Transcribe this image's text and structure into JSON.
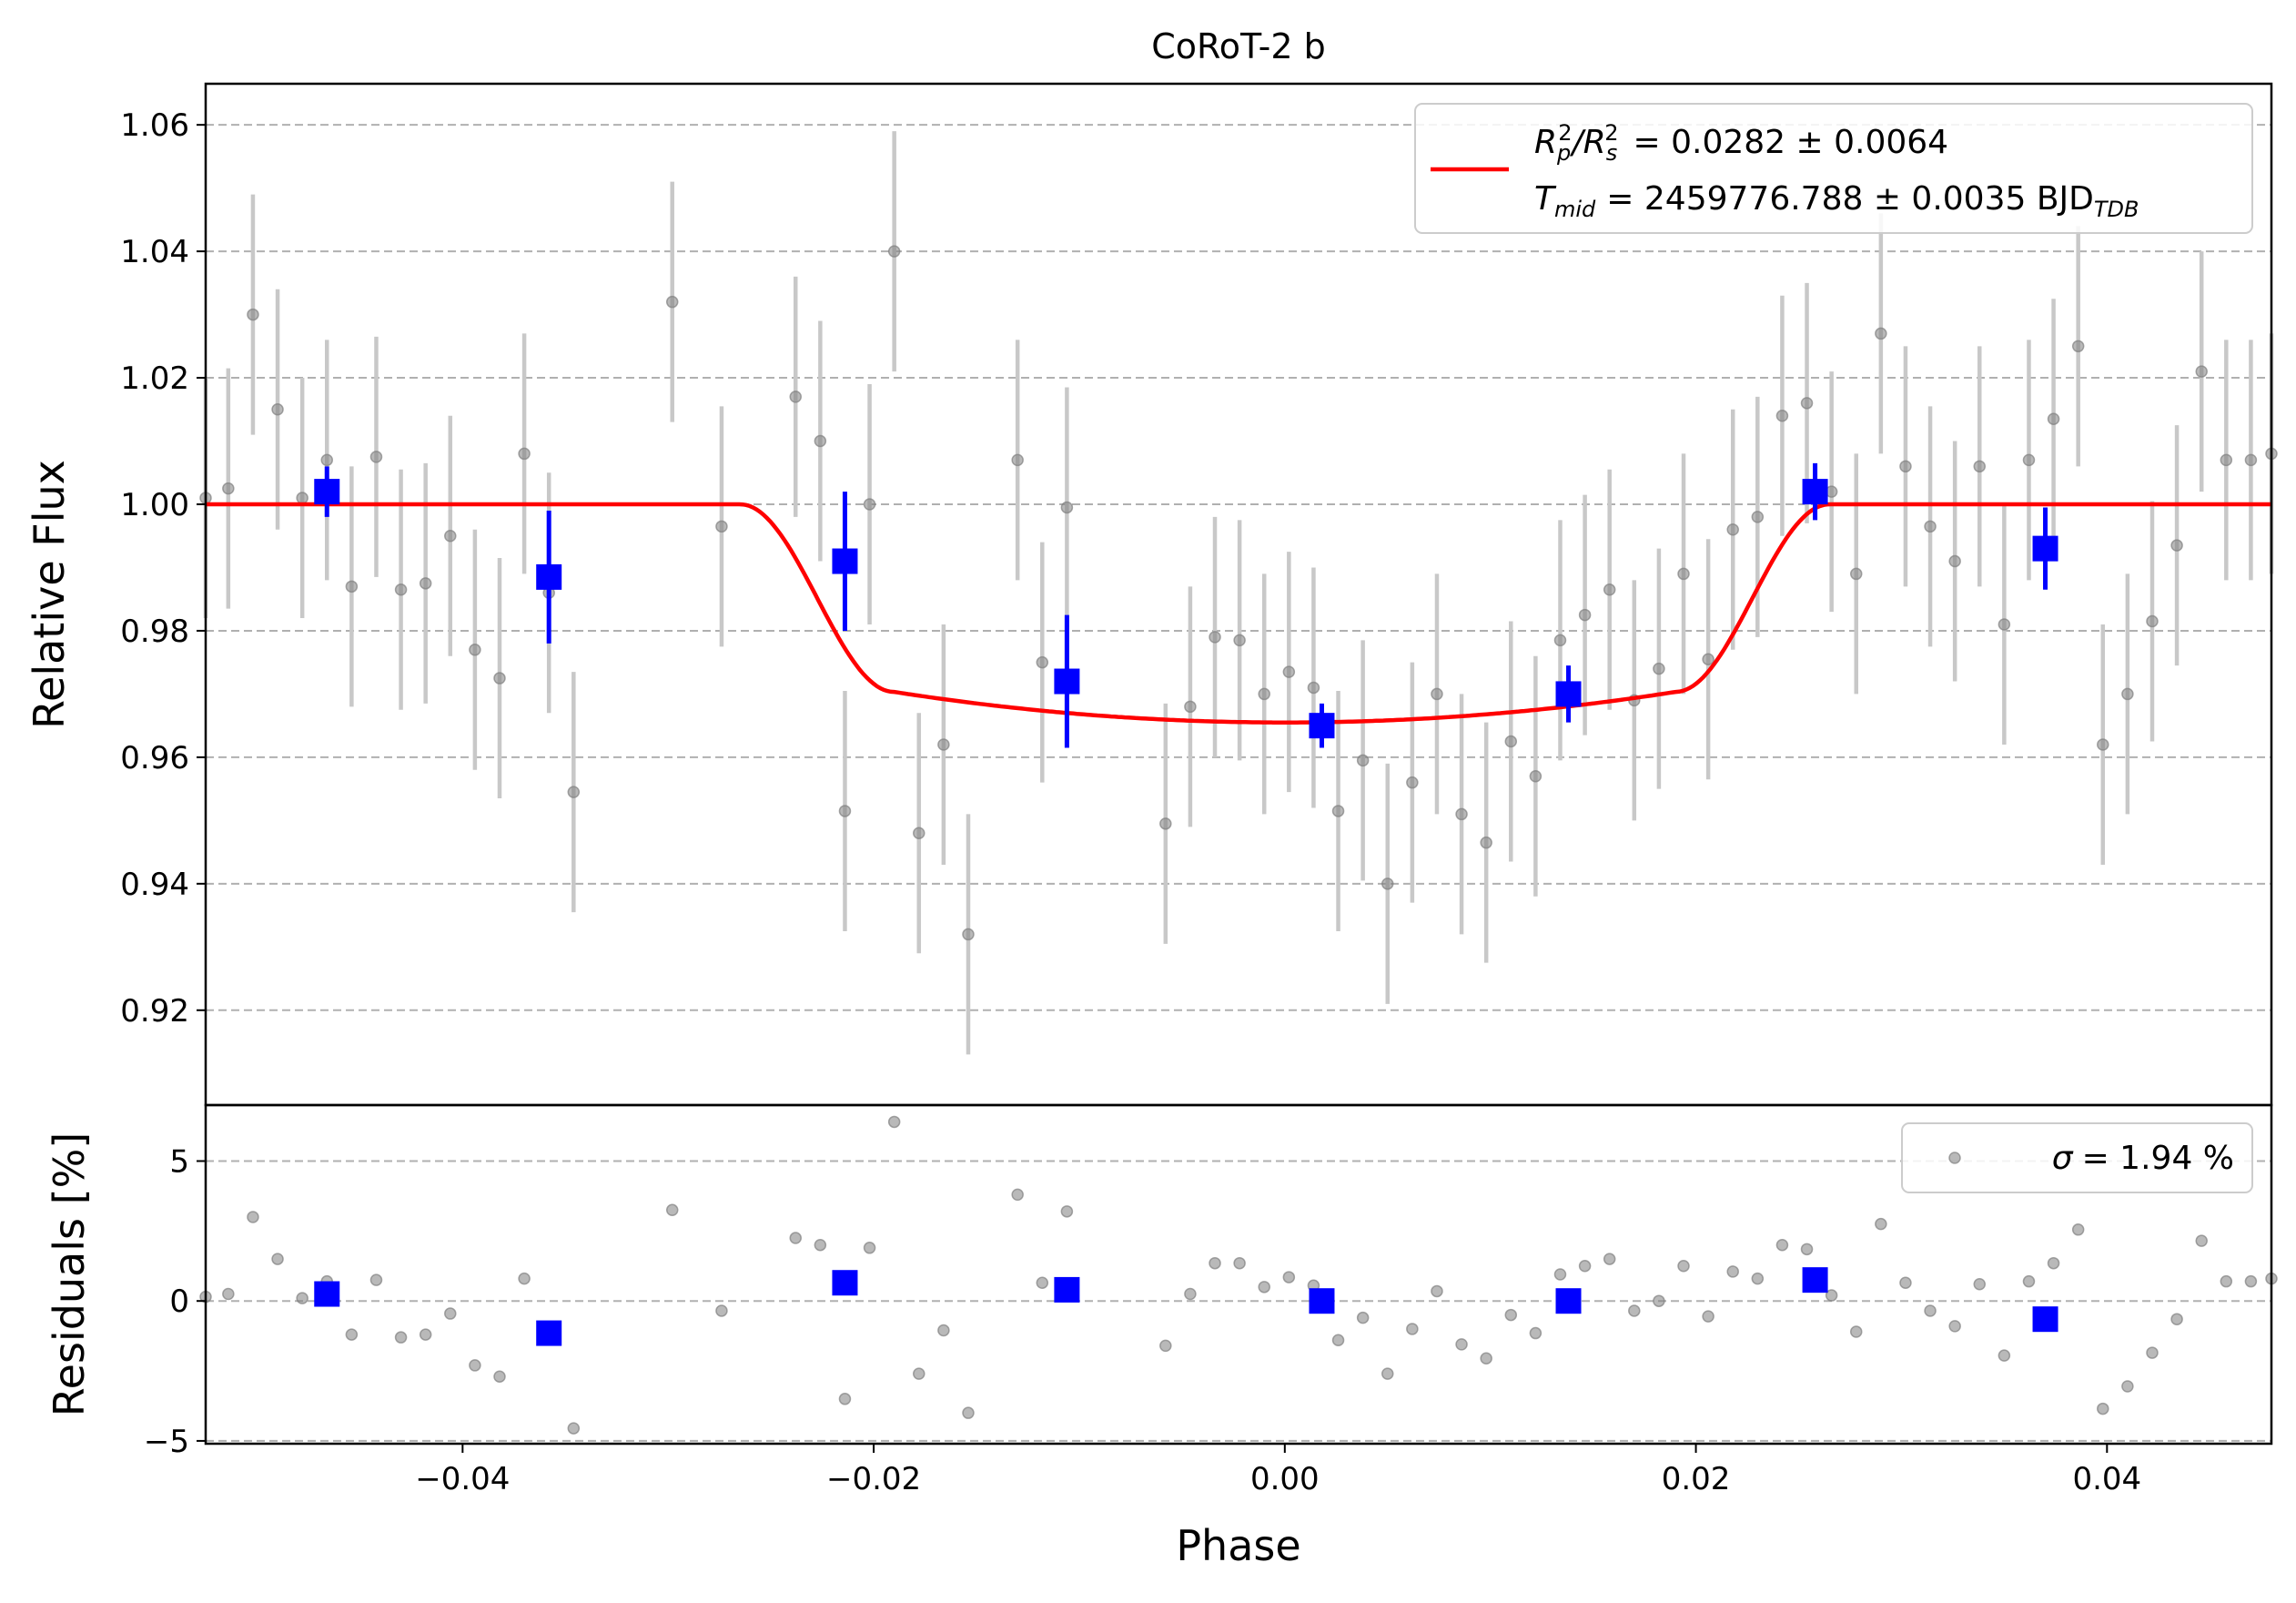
{
  "chart_data": [
    {
      "type": "scatter",
      "title": "CoRoT-2 b",
      "xlabel": "",
      "ylabel": "Relative Flux",
      "xlim": [
        -0.0525,
        0.048
      ],
      "ylim": [
        0.905,
        1.0665
      ],
      "yticks": [
        0.92,
        0.94,
        0.96,
        0.98,
        1.0,
        1.02,
        1.04,
        1.06
      ],
      "ytick_labels": [
        "0.92",
        "0.94",
        "0.96",
        "0.98",
        "1.00",
        "1.02",
        "1.04",
        "1.06"
      ],
      "grid": "y-dashed",
      "legend_placement": "upper-right",
      "legend": {
        "line1_prefix": "R",
        "line1_sub1": "p",
        "line1_sup1": "2",
        "line1_slash": "/R",
        "line1_sub2": "s",
        "line1_sup2": "2",
        "line1_value": "= 0.0282 ± 0.0064",
        "line2_prefix": "T",
        "line2_sub": "mid",
        "line2_value": "= 2459776.788 ± 0.0035 BJD",
        "line2_value_sub": "TDB"
      },
      "series": [
        {
          "kind": "raw",
          "color": "#808080",
          "x": [
            -0.0525,
            -0.0514,
            -0.0502,
            -0.049,
            -0.0478,
            -0.0466,
            -0.0454,
            -0.0442,
            -0.043,
            -0.0418,
            -0.0406,
            -0.0394,
            -0.0382,
            -0.037,
            -0.0358,
            -0.0346,
            -0.0298,
            -0.0274,
            -0.0238,
            -0.0226,
            -0.0214,
            -0.0202,
            -0.019,
            -0.0178,
            -0.0166,
            -0.0154,
            -0.013,
            -0.0118,
            -0.0106,
            -0.0058,
            -0.0046,
            -0.0034,
            -0.0022,
            -0.001,
            0.0002,
            0.0014,
            0.0026,
            0.0038,
            0.005,
            0.0062,
            0.0074,
            0.0086,
            0.0098,
            0.011,
            0.0122,
            0.0134,
            0.0146,
            0.0158,
            0.017,
            0.0182,
            0.0194,
            0.0206,
            0.0218,
            0.023,
            0.0242,
            0.0254,
            0.0266,
            0.0278,
            0.029,
            0.0302,
            0.0314,
            0.0326,
            0.0338,
            0.035,
            0.0362,
            0.0374,
            0.0386,
            0.0398,
            0.041,
            0.0422,
            0.0434,
            0.0446,
            0.0458,
            0.047,
            0.048
          ],
          "y": [
            1.001,
            1.0025,
            1.03,
            1.015,
            1.001,
            1.007,
            0.987,
            1.0075,
            0.9865,
            0.9875,
            0.995,
            0.977,
            0.9725,
            1.008,
            0.986,
            0.9545,
            1.032,
            0.9965,
            1.017,
            1.01,
            0.9515,
            1.0,
            1.04,
            0.948,
            0.962,
            0.932,
            1.007,
            0.975,
            0.9995,
            0.9495,
            0.968,
            0.979,
            0.9785,
            0.97,
            0.9735,
            0.971,
            0.9515,
            0.9595,
            0.94,
            0.956,
            0.97,
            0.951,
            0.9465,
            0.9625,
            0.957,
            0.9785,
            0.9825,
            0.9865,
            0.969,
            0.974,
            0.989,
            0.9755,
            0.996,
            0.998,
            1.014,
            1.016,
            1.002,
            0.989,
            1.027,
            1.006,
            0.9965,
            0.991,
            1.006,
            0.981,
            1.007,
            1.0135,
            1.025,
            0.962,
            0.97,
            0.9815,
            0.9935,
            1.021,
            1.007,
            1.007,
            1.008
          ],
          "yerr": 0.019
        },
        {
          "kind": "binned",
          "color": "#0000ff",
          "x": [
            -0.0466,
            -0.0358,
            -0.0214,
            -0.0106,
            0.0018,
            0.0138,
            0.0258,
            0.037
          ],
          "y": [
            1.002,
            0.9885,
            0.991,
            0.972,
            0.965,
            0.97,
            1.002,
            0.993
          ],
          "yerr": [
            0.004,
            0.0105,
            0.011,
            0.0105,
            0.0035,
            0.0045,
            0.0045,
            0.0065
          ]
        },
        {
          "kind": "model",
          "color": "#ff0000",
          "depth": 0.0345,
          "t1": -0.0265,
          "t2": -0.019,
          "t3": 0.019,
          "t4": 0.0265
        }
      ]
    },
    {
      "type": "scatter",
      "xlabel": "Phase",
      "ylabel": "Residuals [%]",
      "xlim": [
        -0.0525,
        0.048
      ],
      "ylim": [
        -5.1,
        7.0
      ],
      "yticks": [
        -5,
        0,
        5
      ],
      "ytick_labels": [
        "−5",
        "0",
        "5"
      ],
      "xticks": [
        -0.04,
        -0.02,
        0.0,
        0.02,
        0.04
      ],
      "xtick_labels": [
        "−0.04",
        "−0.02",
        "0.00",
        "0.02",
        "0.04"
      ],
      "grid": "y-dashed",
      "legend_placement": "upper-right",
      "legend": {
        "sigma_symbol": "σ",
        "sigma_value": "= 1.94 %"
      },
      "series": [
        {
          "kind": "raw",
          "color": "#808080",
          "x": [
            -0.0525,
            -0.0514,
            -0.0502,
            -0.049,
            -0.0478,
            -0.0466,
            -0.0454,
            -0.0442,
            -0.043,
            -0.0418,
            -0.0406,
            -0.0394,
            -0.0382,
            -0.037,
            -0.0358,
            -0.0346,
            -0.0298,
            -0.0274,
            -0.0238,
            -0.0226,
            -0.0214,
            -0.0202,
            -0.019,
            -0.0178,
            -0.0166,
            -0.0154,
            -0.013,
            -0.0118,
            -0.0106,
            -0.0058,
            -0.0046,
            -0.0034,
            -0.0022,
            -0.001,
            0.0002,
            0.0014,
            0.0026,
            0.0038,
            0.005,
            0.0062,
            0.0074,
            0.0086,
            0.0098,
            0.011,
            0.0122,
            0.0134,
            0.0146,
            0.0158,
            0.017,
            0.0182,
            0.0194,
            0.0206,
            0.0218,
            0.023,
            0.0242,
            0.0254,
            0.0266,
            0.0278,
            0.029,
            0.0302,
            0.0314,
            0.0326,
            0.0338,
            0.035,
            0.0362,
            0.0374,
            0.0386,
            0.0398,
            0.041,
            0.0422,
            0.0434,
            0.0446,
            0.0458,
            0.047,
            0.048
          ],
          "y": [
            0.15,
            0.25,
            3.0,
            1.5,
            0.1,
            0.7,
            -1.2,
            0.75,
            -1.3,
            -1.2,
            -0.45,
            -2.3,
            -2.7,
            0.8,
            -1.1,
            -4.55,
            3.25,
            -0.35,
            2.25,
            2.0,
            -3.5,
            1.9,
            6.4,
            -2.6,
            -1.05,
            -4.0,
            3.8,
            0.65,
            3.2,
            -1.6,
            0.25,
            1.35,
            1.35,
            0.5,
            0.85,
            0.55,
            -1.4,
            -0.6,
            -2.6,
            -1.0,
            0.35,
            -1.55,
            -2.05,
            -0.5,
            -1.15,
            0.95,
            1.25,
            1.5,
            -0.35,
            0.0,
            1.25,
            -0.55,
            1.05,
            0.8,
            2.0,
            1.85,
            0.2,
            -1.1,
            2.75,
            0.65,
            -0.35,
            -0.9,
            0.6,
            -1.95,
            0.7,
            1.35,
            2.55,
            -3.85,
            -3.05,
            -1.85,
            -0.65,
            2.15,
            0.7,
            0.7,
            0.8
          ]
        },
        {
          "kind": "binned",
          "color": "#0000ff",
          "x": [
            -0.0466,
            -0.0358,
            -0.0214,
            -0.0106,
            0.0018,
            0.0138,
            0.0258,
            0.037
          ],
          "y": [
            0.25,
            -1.15,
            0.65,
            0.4,
            0.0,
            0.0,
            0.75,
            -0.65
          ]
        }
      ]
    }
  ]
}
